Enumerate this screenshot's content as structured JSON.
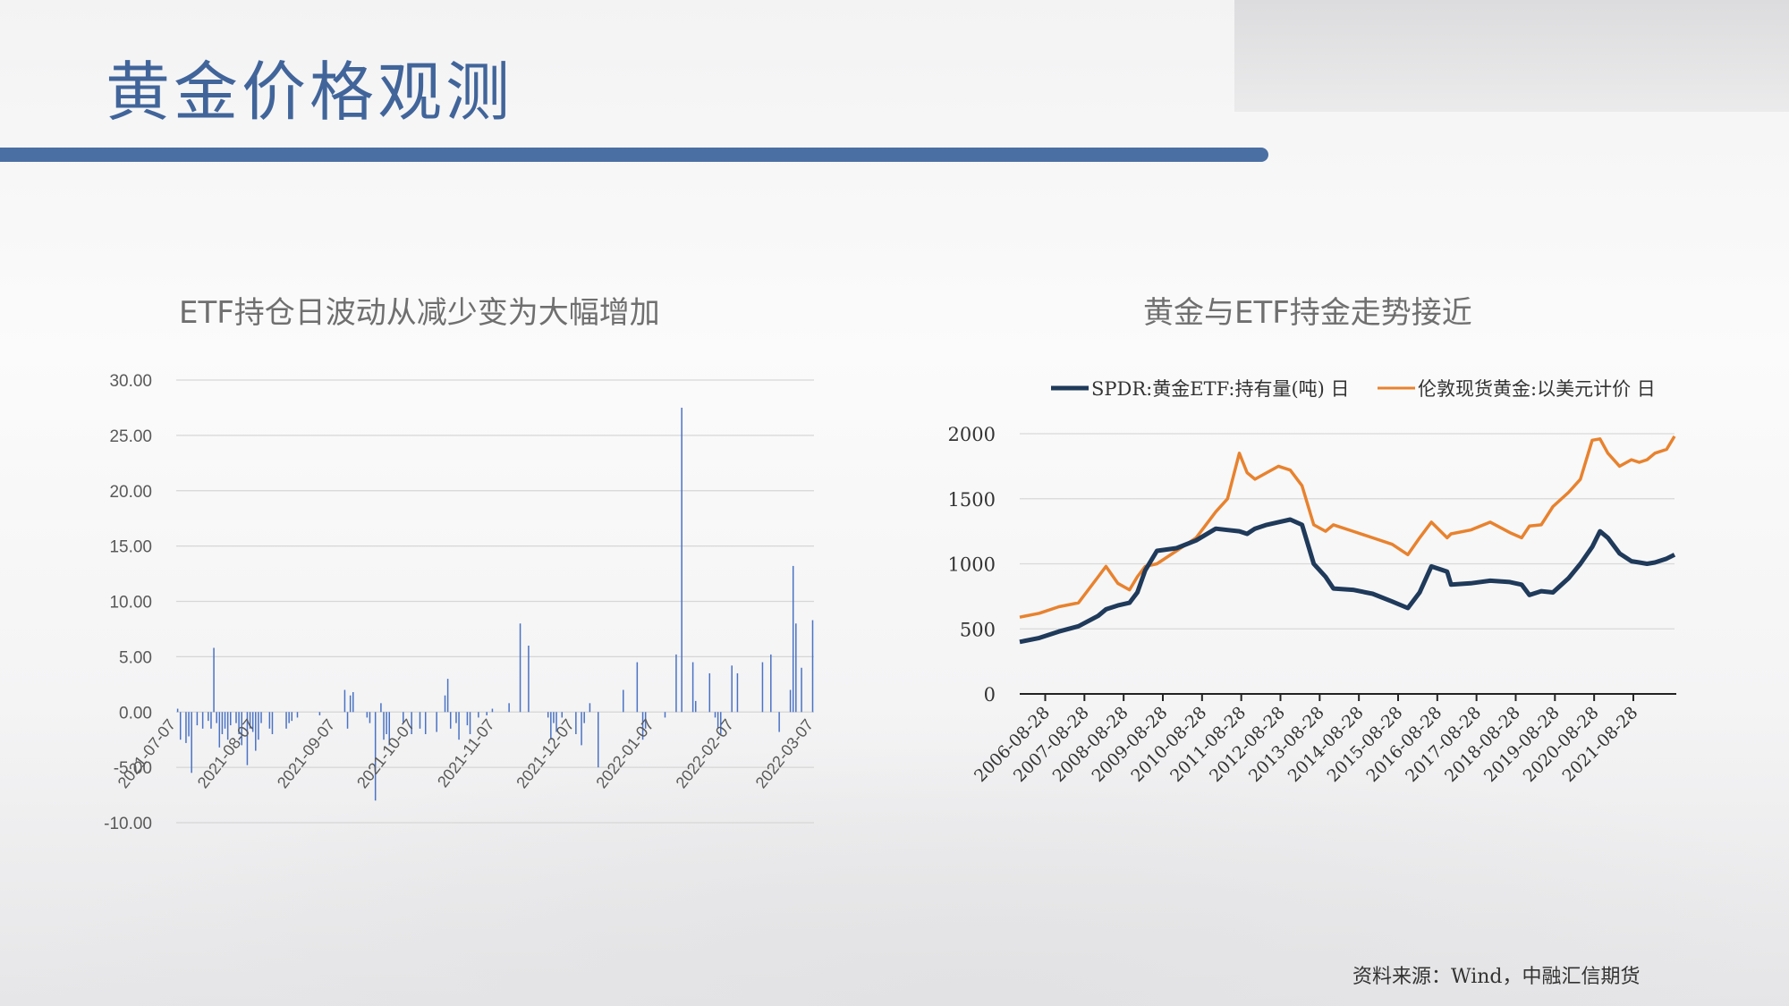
{
  "page": {
    "title": "黄金价格观测",
    "source": "资料来源：Wind，中融汇信期货",
    "accent_color": "#4a6fa3"
  },
  "chart_data": [
    {
      "type": "bar",
      "title": "ETF持仓日波动从减少变为大幅增加",
      "ylim": [
        -10,
        30
      ],
      "ytick_labels": [
        "30.00",
        "25.00",
        "20.00",
        "15.00",
        "10.00",
        "5.00",
        "0.00",
        "-5.00",
        "-10.00"
      ],
      "yticks": [
        30,
        25,
        20,
        15,
        10,
        5,
        0,
        -5,
        -10
      ],
      "xtick_labels": [
        "2021-07-07",
        "2021-08-07",
        "2021-09-07",
        "2021-10-07",
        "2021-11-07",
        "2021-12-07",
        "2022-01-07",
        "2022-02-07",
        "2022-03-07"
      ],
      "bar_color": "#4a72c4",
      "grid": true,
      "values": [
        0.3,
        -2.5,
        0,
        -2.8,
        -2.2,
        -5.5,
        0,
        -1.2,
        0,
        -1.5,
        0,
        -0.8,
        -1.5,
        5.8,
        -1.0,
        -3.2,
        -2.0,
        -1.5,
        -2.5,
        -1.2,
        0,
        -1.0,
        -2.0,
        -3.0,
        0,
        -4.8,
        -1.5,
        -1.8,
        -3.5,
        -2.5,
        -1.0,
        0,
        0,
        -1.5,
        -2.0,
        0,
        0,
        0,
        0,
        -1.5,
        -1.0,
        -0.8,
        0,
        -0.5,
        0,
        0,
        0,
        0,
        0,
        0,
        0,
        -0.3,
        0,
        0,
        0,
        0,
        0,
        0,
        0,
        0,
        2.0,
        -1.5,
        1.5,
        1.8,
        0,
        0,
        0,
        0,
        -0.5,
        -1.0,
        0,
        -8.0,
        0,
        0.8,
        -2.5,
        -2.0,
        -3.0,
        0,
        0,
        0,
        0,
        -1.0,
        0,
        0,
        -2.0,
        0,
        0,
        -1.5,
        0,
        -2.0,
        0,
        0,
        0,
        -1.8,
        0,
        0,
        1.5,
        3.0,
        -1.5,
        0,
        -1.0,
        -2.5,
        0,
        0,
        -1.2,
        -2.0,
        0,
        0,
        -0.5,
        0,
        0,
        -0.3,
        0,
        0.3,
        0,
        0,
        0,
        0,
        0,
        0.8,
        0,
        0,
        0,
        8.0,
        0,
        0,
        6.0,
        0,
        0,
        0,
        0,
        0,
        0,
        -0.5,
        -2.5,
        -1.0,
        -1.8,
        0,
        -0.5,
        0,
        0,
        0,
        0,
        -2.0,
        0,
        -3.0,
        -1.0,
        0,
        0.8,
        0,
        0,
        -5.0,
        0,
        0,
        0,
        0,
        0,
        0,
        0,
        0,
        2.0,
        0,
        0,
        0,
        0,
        4.5,
        0,
        -2.5,
        -1.5,
        0,
        0,
        0,
        0,
        0,
        0,
        -0.5,
        0,
        0,
        0,
        5.2,
        0,
        27.5,
        0,
        0,
        0,
        4.5,
        1.0,
        0,
        0,
        0,
        0,
        3.5,
        0,
        -0.5,
        -1.5,
        -2.0,
        0,
        0,
        0,
        4.2,
        0,
        3.5,
        0,
        0,
        0,
        0,
        0,
        0,
        0,
        0,
        4.5,
        0,
        0,
        5.2,
        0,
        0,
        -1.8,
        0,
        0,
        0,
        2.0,
        13.2,
        8.0,
        0,
        4.0,
        0,
        0,
        0,
        8.3
      ]
    },
    {
      "type": "line",
      "title": "黄金与ETF持金走势接近",
      "ylim": [
        0,
        2000
      ],
      "yticks": [
        0,
        500,
        1000,
        1500,
        2000
      ],
      "xtick_labels": [
        "2006-08-28",
        "2007-08-28",
        "2008-08-28",
        "2009-08-28",
        "2010-08-28",
        "2011-08-28",
        "2012-08-28",
        "2013-08-28",
        "2014-08-28",
        "2015-08-28",
        "2016-08-28",
        "2017-08-28",
        "2018-08-28",
        "2019-08-28",
        "2020-08-28",
        "2021-08-28"
      ],
      "x": [
        2006.0,
        2006.5,
        2007.0,
        2007.5,
        2008.0,
        2008.2,
        2008.5,
        2008.8,
        2009.0,
        2009.2,
        2009.5,
        2010.0,
        2010.5,
        2011.0,
        2011.3,
        2011.6,
        2011.8,
        2012.0,
        2012.3,
        2012.6,
        2012.9,
        2013.2,
        2013.5,
        2013.8,
        2014.0,
        2014.5,
        2015.0,
        2015.5,
        2015.9,
        2016.2,
        2016.5,
        2016.9,
        2017.0,
        2017.5,
        2018.0,
        2018.5,
        2018.8,
        2019.0,
        2019.3,
        2019.6,
        2020.0,
        2020.3,
        2020.6,
        2020.8,
        2021.0,
        2021.3,
        2021.6,
        2021.8,
        2022.0,
        2022.2,
        2022.5,
        2022.7
      ],
      "series": [
        {
          "name": "SPDR:黄金ETF:持有量(吨) 日",
          "color": "#1f3a5a",
          "values": [
            400,
            430,
            480,
            520,
            600,
            650,
            680,
            700,
            780,
            950,
            1100,
            1120,
            1180,
            1270,
            1260,
            1250,
            1230,
            1270,
            1300,
            1320,
            1340,
            1300,
            1000,
            900,
            810,
            800,
            770,
            710,
            660,
            780,
            980,
            940,
            840,
            850,
            870,
            860,
            840,
            760,
            790,
            780,
            890,
            1000,
            1130,
            1250,
            1200,
            1080,
            1020,
            1010,
            1000,
            1010,
            1040,
            1070
          ]
        },
        {
          "name": "伦敦现货黄金:以美元计价 日",
          "color": "#e8822e",
          "values": [
            590,
            620,
            670,
            700,
            900,
            980,
            850,
            800,
            900,
            980,
            1000,
            1100,
            1200,
            1400,
            1500,
            1850,
            1700,
            1650,
            1700,
            1750,
            1720,
            1600,
            1300,
            1250,
            1300,
            1250,
            1200,
            1150,
            1070,
            1200,
            1320,
            1200,
            1230,
            1260,
            1320,
            1240,
            1200,
            1290,
            1300,
            1440,
            1550,
            1650,
            1950,
            1960,
            1850,
            1750,
            1800,
            1780,
            1800,
            1850,
            1880,
            1980
          ]
        }
      ]
    }
  ]
}
